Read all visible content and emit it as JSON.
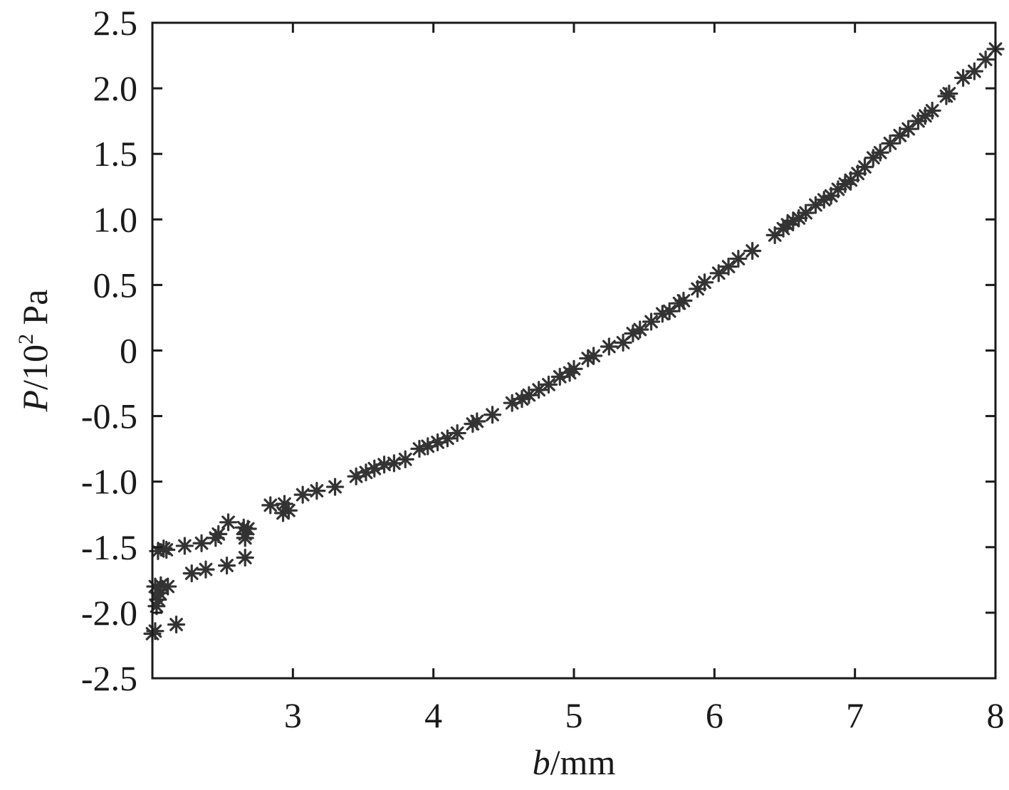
{
  "chart_data": {
    "type": "scatter",
    "xlabel_var": "b",
    "xlabel_unit": "/mm",
    "ylabel_var": "P",
    "ylabel_mid": "/10",
    "ylabel_sup": "2",
    "ylabel_unit": " Pa",
    "xlim": [
      2.0,
      8.0
    ],
    "ylim": [
      -2.5,
      2.5
    ],
    "x_ticks": [
      {
        "value": 3,
        "label": "3"
      },
      {
        "value": 4,
        "label": "4"
      },
      {
        "value": 5,
        "label": "5"
      },
      {
        "value": 6,
        "label": "6"
      },
      {
        "value": 7,
        "label": "7"
      },
      {
        "value": 8,
        "label": "8"
      }
    ],
    "y_ticks": [
      {
        "value": 2.5,
        "label": "2.5"
      },
      {
        "value": 2.0,
        "label": "2.0"
      },
      {
        "value": 1.5,
        "label": "1.5"
      },
      {
        "value": 1.0,
        "label": "1.0"
      },
      {
        "value": 0.5,
        "label": "0.5"
      },
      {
        "value": 0,
        "label": "0"
      },
      {
        "value": -0.5,
        "label": "-0.5"
      },
      {
        "value": -1.0,
        "label": "-1.0"
      },
      {
        "value": -1.5,
        "label": "-1.5"
      },
      {
        "value": -2.0,
        "label": "-2.0"
      },
      {
        "value": -2.5,
        "label": "-2.5"
      }
    ],
    "grid": false,
    "marker": "asterisk",
    "marker_color": "#333333",
    "points": [
      [
        2.0,
        -2.16
      ],
      [
        2.02,
        -2.14
      ],
      [
        2.17,
        -2.09
      ],
      [
        2.03,
        -1.95
      ],
      [
        2.04,
        -1.9
      ],
      [
        2.05,
        -1.85
      ],
      [
        2.02,
        -1.8
      ],
      [
        2.06,
        -1.79
      ],
      [
        2.11,
        -1.8
      ],
      [
        2.04,
        -1.53
      ],
      [
        2.08,
        -1.51
      ],
      [
        2.1,
        -1.52
      ],
      [
        2.23,
        -1.49
      ],
      [
        2.35,
        -1.47
      ],
      [
        2.45,
        -1.43
      ],
      [
        2.47,
        -1.4
      ],
      [
        2.54,
        -1.31
      ],
      [
        2.65,
        -1.35
      ],
      [
        2.66,
        -1.4
      ],
      [
        2.68,
        -1.36
      ],
      [
        2.66,
        -1.43
      ],
      [
        2.28,
        -1.7
      ],
      [
        2.38,
        -1.67
      ],
      [
        2.53,
        -1.64
      ],
      [
        2.66,
        -1.58
      ],
      [
        2.84,
        -1.18
      ],
      [
        2.93,
        -1.24
      ],
      [
        2.94,
        -1.17
      ],
      [
        2.97,
        -1.22
      ],
      [
        3.07,
        -1.1
      ],
      [
        3.17,
        -1.07
      ],
      [
        3.3,
        -1.04
      ],
      [
        3.45,
        -0.96
      ],
      [
        3.52,
        -0.93
      ],
      [
        3.58,
        -0.9
      ],
      [
        3.65,
        -0.87
      ],
      [
        3.72,
        -0.86
      ],
      [
        3.8,
        -0.83
      ],
      [
        3.9,
        -0.75
      ],
      [
        3.96,
        -0.73
      ],
      [
        4.03,
        -0.7
      ],
      [
        4.1,
        -0.67
      ],
      [
        4.17,
        -0.63
      ],
      [
        4.28,
        -0.56
      ],
      [
        4.31,
        -0.54
      ],
      [
        4.42,
        -0.49
      ],
      [
        4.56,
        -0.4
      ],
      [
        4.63,
        -0.37
      ],
      [
        4.68,
        -0.34
      ],
      [
        4.75,
        -0.3
      ],
      [
        4.82,
        -0.26
      ],
      [
        4.9,
        -0.2
      ],
      [
        4.97,
        -0.17
      ],
      [
        5.0,
        -0.14
      ],
      [
        5.1,
        -0.06
      ],
      [
        5.14,
        -0.04
      ],
      [
        5.25,
        0.03
      ],
      [
        5.35,
        0.06
      ],
      [
        5.42,
        0.13
      ],
      [
        5.47,
        0.16
      ],
      [
        5.55,
        0.22
      ],
      [
        5.63,
        0.28
      ],
      [
        5.68,
        0.3
      ],
      [
        5.75,
        0.36
      ],
      [
        5.78,
        0.38
      ],
      [
        5.88,
        0.47
      ],
      [
        5.93,
        0.52
      ],
      [
        6.03,
        0.59
      ],
      [
        6.1,
        0.64
      ],
      [
        6.17,
        0.7
      ],
      [
        6.27,
        0.76
      ],
      [
        6.43,
        0.88
      ],
      [
        6.49,
        0.93
      ],
      [
        6.52,
        0.96
      ],
      [
        6.56,
        0.99
      ],
      [
        6.6,
        1.01
      ],
      [
        6.65,
        1.05
      ],
      [
        6.72,
        1.11
      ],
      [
        6.78,
        1.15
      ],
      [
        6.83,
        1.18
      ],
      [
        6.88,
        1.23
      ],
      [
        6.93,
        1.27
      ],
      [
        6.97,
        1.3
      ],
      [
        7.02,
        1.35
      ],
      [
        7.07,
        1.4
      ],
      [
        7.13,
        1.47
      ],
      [
        7.18,
        1.51
      ],
      [
        7.25,
        1.58
      ],
      [
        7.32,
        1.64
      ],
      [
        7.38,
        1.69
      ],
      [
        7.45,
        1.75
      ],
      [
        7.5,
        1.79
      ],
      [
        7.55,
        1.83
      ],
      [
        7.65,
        1.94
      ],
      [
        7.67,
        1.96
      ],
      [
        7.77,
        2.08
      ],
      [
        7.85,
        2.13
      ],
      [
        7.93,
        2.22
      ],
      [
        8.0,
        2.3
      ]
    ]
  }
}
